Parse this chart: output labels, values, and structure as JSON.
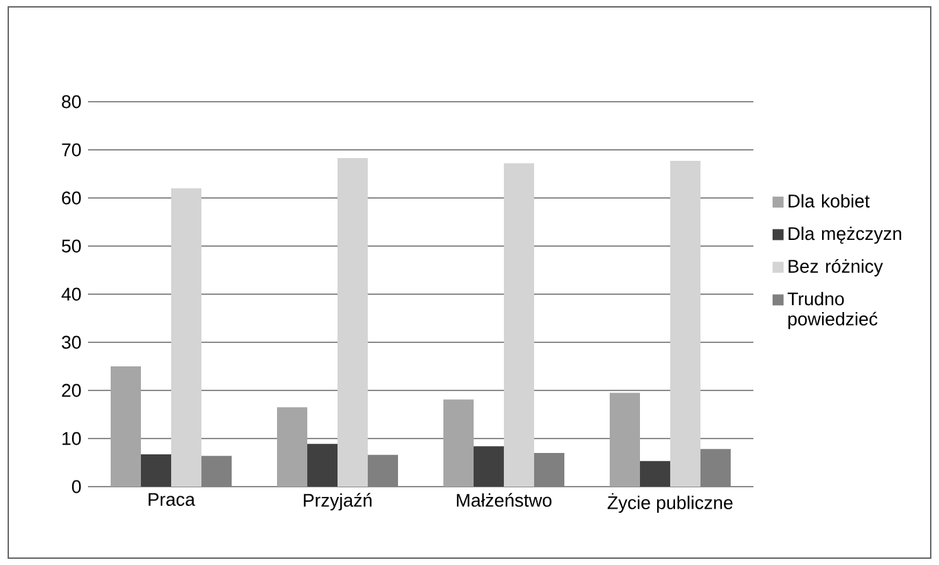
{
  "chart_data": {
    "type": "bar",
    "categories": [
      "Praca",
      "Przyjaźń",
      "Małżeństwo",
      "Życie publiczne"
    ],
    "series": [
      {
        "name": "Dla kobiet",
        "color": "#a6a6a6",
        "values": [
          25,
          16.5,
          18.1,
          19.5
        ]
      },
      {
        "name": "Dla mężczyzn",
        "color": "#404040",
        "values": [
          6.7,
          8.9,
          8.4,
          5.3
        ]
      },
      {
        "name": "Bez różnicy",
        "color": "#d4d4d4",
        "values": [
          62,
          68.3,
          67.2,
          67.7
        ]
      },
      {
        "name": "Trudno powiedzieć",
        "color": "#808080",
        "values": [
          6.4,
          6.6,
          7,
          7.8
        ]
      }
    ],
    "ylim": [
      0,
      80
    ],
    "yticks": [
      0,
      10,
      20,
      30,
      40,
      50,
      60,
      70,
      80
    ],
    "grid": "y",
    "legend": "right"
  }
}
